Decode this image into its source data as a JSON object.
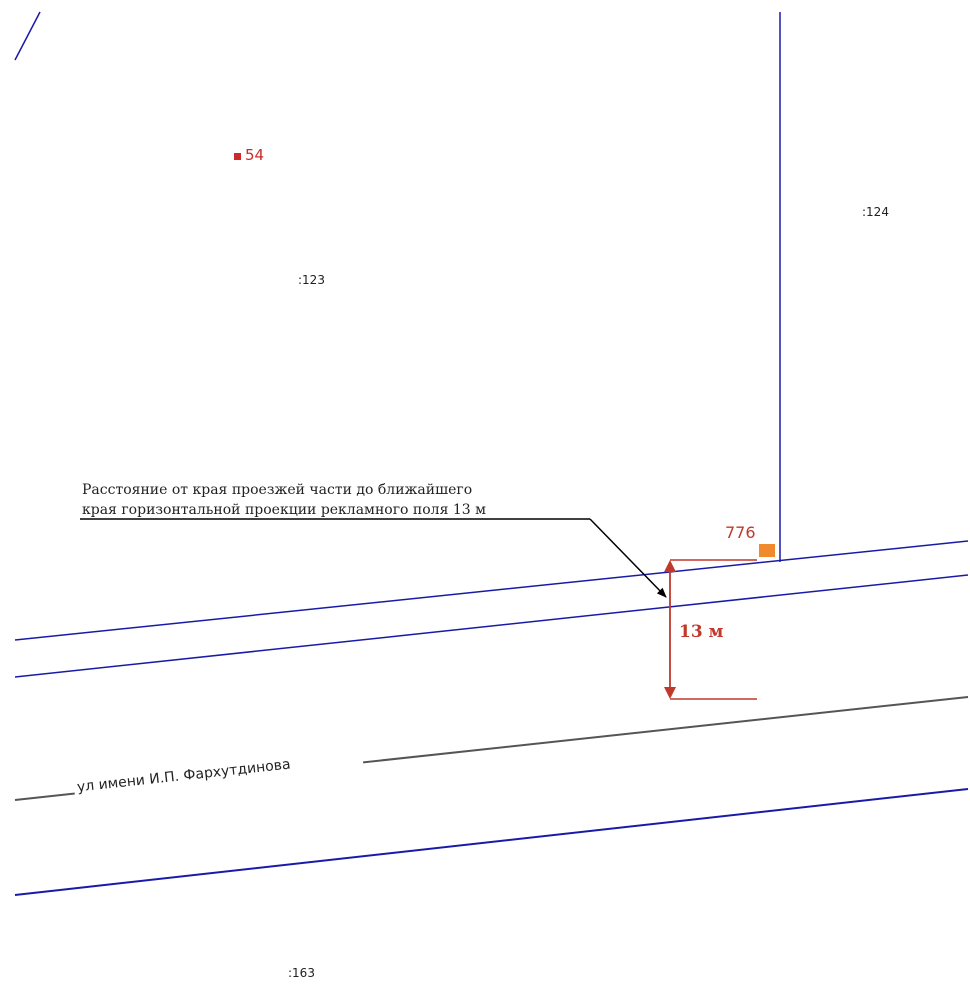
{
  "map": {
    "parcels": [
      ":123",
      ":124",
      ":163"
    ],
    "point": {
      "label": "54",
      "color": "#cc2a2a"
    },
    "billboard": {
      "label": "776",
      "color": "#f08a2c"
    },
    "street_name": "ул имени И.П. Фархутдинова",
    "callout": {
      "line1": "Расстояние от края проезжей части до ближайшего",
      "line2": "края горизонтальной проекции рекламного поля 13 м"
    },
    "dimension": {
      "label": "13 м",
      "value_m": 13,
      "color": "#c0392b"
    },
    "colors": {
      "parcel_boundary": "#1a1aa8",
      "road_axis": "#555555",
      "dimension": "#c0392b"
    }
  }
}
